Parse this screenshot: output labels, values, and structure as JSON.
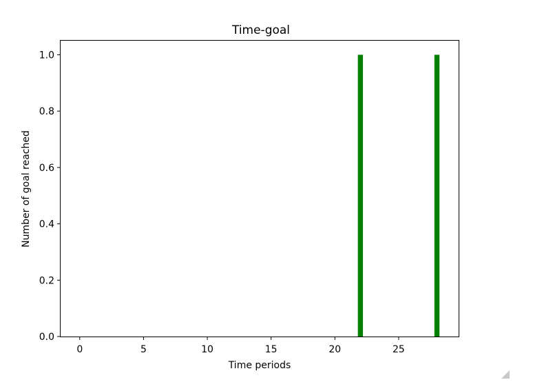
{
  "chart_data": {
    "type": "bar",
    "title": "Time-goal",
    "xlabel": "Time periods",
    "ylabel": "Number of goal reached",
    "xlim": [
      -1.5,
      29.7
    ],
    "ylim": [
      0.0,
      1.05
    ],
    "xticks": [
      0,
      5,
      10,
      15,
      20,
      25
    ],
    "xtick_labels": [
      "0",
      "5",
      "10",
      "15",
      "20",
      "25"
    ],
    "yticks": [
      0.0,
      0.2,
      0.4,
      0.6,
      0.8,
      1.0
    ],
    "ytick_labels": [
      "0.0",
      "0.2",
      "0.4",
      "0.6",
      "0.8",
      "1.0"
    ],
    "bar_width": 0.4,
    "color": "#008000",
    "grid": false,
    "series": [
      {
        "x": [
          22,
          28
        ],
        "values": [
          1,
          1
        ]
      }
    ]
  }
}
